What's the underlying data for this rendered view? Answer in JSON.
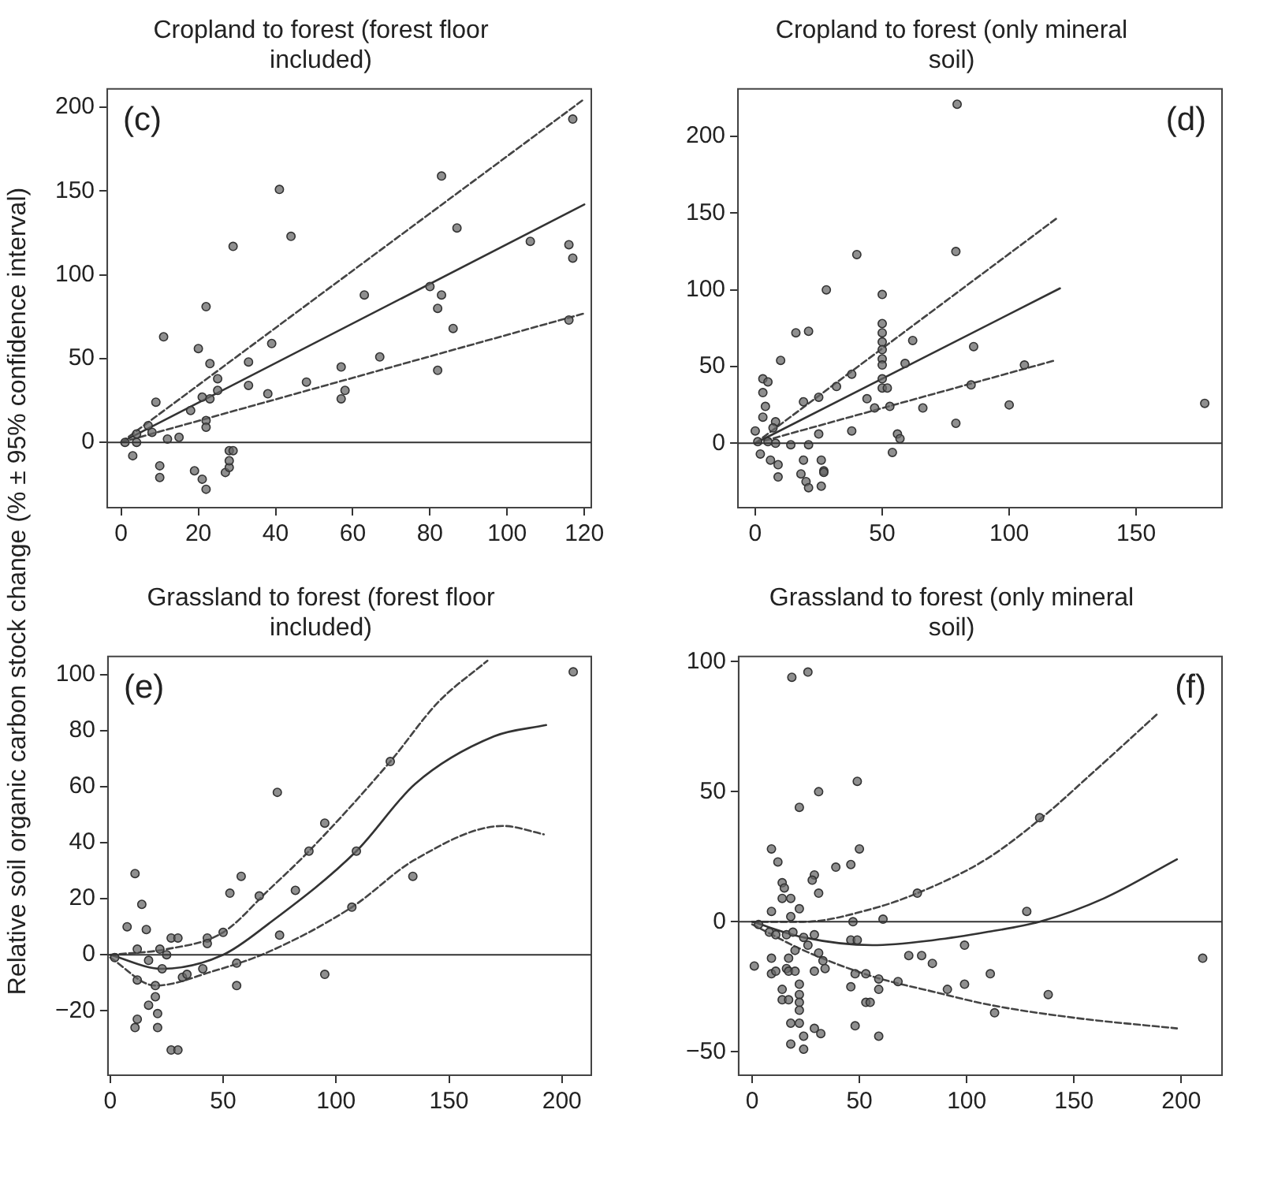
{
  "chart_data": [
    {
      "type": "scatter",
      "title": "Cropland to forest (forest floor included)",
      "ylabel": "Relative soil organic carbon stock change (% ± 95% confidence interval)",
      "annotations": [
        "(c)"
      ],
      "xlim": [
        -3.6,
        121.8
      ],
      "ylim": [
        -39,
        211
      ],
      "xticks": [
        0,
        20,
        40,
        60,
        80,
        100,
        120
      ],
      "yticks": [
        0,
        50,
        100,
        150,
        200
      ],
      "grid": false,
      "legend": false,
      "ref_lines": [
        {
          "axis": "y",
          "value": 0,
          "color": "#333333"
        }
      ],
      "series": [
        {
          "type": "scatter",
          "marker": "circle",
          "color": "#666666",
          "x": [
            1,
            3,
            4,
            4,
            7,
            8,
            9,
            10,
            10,
            11,
            12,
            15,
            18,
            19,
            20,
            21,
            21,
            22,
            22,
            22,
            22,
            23,
            23,
            25,
            25,
            27,
            28,
            28,
            28,
            29,
            29,
            33,
            33,
            38,
            39,
            41,
            44,
            48,
            57,
            57,
            58,
            63,
            67,
            80,
            82,
            82,
            83,
            83,
            86,
            87,
            106,
            116,
            116,
            117,
            117
          ],
          "values": [
            0,
            -8,
            5,
            0,
            10,
            6,
            24,
            -14,
            -21,
            63,
            2,
            3,
            19,
            -17,
            56,
            -22,
            27,
            13,
            81,
            -28,
            9,
            26,
            47,
            38,
            31,
            -18,
            -15,
            -11,
            -5,
            -5,
            117,
            48,
            34,
            29,
            59,
            151,
            123,
            36,
            45,
            26,
            31,
            88,
            51,
            93,
            80,
            43,
            88,
            159,
            68,
            128,
            120,
            118,
            73,
            110,
            193
          ]
        },
        {
          "type": "line",
          "color": "#333333",
          "line_style": "solid",
          "x": [
            0,
            120
          ],
          "values": [
            0,
            142
          ]
        },
        {
          "type": "line",
          "color": "#444444",
          "line_style": "dashed",
          "x": [
            0,
            120
          ],
          "values": [
            0,
            205
          ]
        },
        {
          "type": "line",
          "color": "#444444",
          "line_style": "dashed",
          "x": [
            0,
            120
          ],
          "values": [
            0,
            77
          ]
        }
      ]
    },
    {
      "type": "scatter",
      "title": "Cropland to forest (only mineral soil)",
      "annotations": [
        "(d)"
      ],
      "xlim": [
        -6.8,
        183.8
      ],
      "ylim": [
        -42,
        231
      ],
      "xticks": [
        0,
        50,
        100,
        150
      ],
      "yticks": [
        0,
        50,
        100,
        150,
        200
      ],
      "grid": false,
      "legend": false,
      "ref_lines": [
        {
          "axis": "y",
          "value": 0,
          "color": "#333333"
        }
      ],
      "series": [
        {
          "type": "scatter",
          "marker": "circle",
          "color": "#666666",
          "x": [
            79.5,
            79,
            40,
            28,
            50,
            50,
            50,
            50,
            50,
            50,
            50,
            62,
            59,
            86,
            16,
            21,
            10,
            3,
            5,
            3,
            4,
            3,
            0,
            1,
            8,
            7,
            19,
            25,
            32,
            38,
            44,
            47,
            50,
            50,
            52,
            53,
            66,
            85,
            100,
            106,
            177,
            79,
            56,
            57,
            54,
            38,
            25,
            14,
            21,
            2,
            6,
            9,
            9,
            18,
            19,
            20,
            21,
            26,
            27,
            27,
            26,
            8,
            5
          ],
          "values": [
            221,
            125,
            123,
            100,
            97,
            78,
            72,
            66,
            61,
            55,
            51,
            67,
            52,
            63,
            72,
            73,
            54,
            42,
            40,
            33,
            24,
            17,
            8,
            1,
            14,
            10,
            27,
            30,
            37,
            45,
            29,
            23,
            42,
            36,
            36,
            24,
            23,
            38,
            25,
            51,
            26,
            13,
            6,
            3,
            -6,
            8,
            6,
            -1,
            -1,
            -7,
            -11,
            -14,
            -22,
            -20,
            -11,
            -25,
            -29,
            -11,
            -18,
            -19,
            -28,
            0,
            1
          ]
        },
        {
          "type": "line",
          "color": "#333333",
          "line_style": "solid",
          "x": [
            0,
            120
          ],
          "values": [
            0,
            101
          ]
        },
        {
          "type": "line",
          "color": "#444444",
          "line_style": "dashed",
          "x": [
            0,
            119
          ],
          "values": [
            0,
            147
          ]
        },
        {
          "type": "line",
          "color": "#444444",
          "line_style": "dashed",
          "x": [
            0,
            118
          ],
          "values": [
            0,
            54
          ]
        }
      ]
    },
    {
      "type": "scatter",
      "title": "Grassland to forest (forest floor included)",
      "annotations": [
        "(e)"
      ],
      "xlim": [
        -1,
        213
      ],
      "ylim": [
        -43,
        106.5
      ],
      "xticks": [
        0,
        50,
        100,
        150,
        200
      ],
      "yticks": [
        -20,
        0,
        20,
        40,
        60,
        80,
        100
      ],
      "grid": false,
      "legend": false,
      "ref_lines": [
        {
          "axis": "y",
          "value": 0,
          "color": "#333333"
        }
      ],
      "series": [
        {
          "type": "scatter",
          "marker": "circle",
          "color": "#666666",
          "x": [
            205,
            124,
            74,
            95,
            88,
            109,
            134,
            107,
            82,
            75,
            58,
            53,
            66,
            95,
            56,
            56,
            11,
            14,
            7.5,
            16,
            12,
            22,
            27,
            30,
            43,
            43,
            50,
            17,
            25,
            23,
            12,
            20,
            20,
            17,
            12,
            11,
            21,
            21,
            32,
            34,
            41,
            27,
            30,
            2
          ],
          "values": [
            101,
            69,
            58,
            47,
            37,
            37,
            28,
            17,
            23,
            7,
            28,
            22,
            21,
            -7,
            -3,
            -11,
            29,
            18,
            10,
            9,
            2,
            2,
            6,
            6,
            6,
            4,
            8,
            -2,
            0,
            -5,
            -9,
            -11,
            -15,
            -18,
            -23,
            -26,
            -21,
            -26,
            -8,
            -7,
            -5,
            -34,
            -34,
            -1
          ]
        },
        {
          "type": "line",
          "color": "#333333",
          "line_style": "solid",
          "x": [
            0,
            23,
            50,
            70,
            109,
            135,
            170,
            193
          ],
          "values": [
            0,
            -5,
            0,
            11,
            37,
            61,
            78,
            82
          ]
        },
        {
          "type": "line",
          "color": "#444444",
          "line_style": "dashed",
          "x": [
            0,
            25,
            50,
            70,
            88,
            124,
            145,
            167
          ],
          "values": [
            0,
            2,
            8,
            23,
            37,
            69,
            90,
            105
          ]
        },
        {
          "type": "line",
          "color": "#444444",
          "line_style": "dashed",
          "x": [
            0,
            20,
            45,
            70,
            107,
            135,
            174,
            192
          ],
          "values": [
            -1,
            -11,
            -6,
            1,
            17,
            34,
            46,
            43
          ]
        }
      ]
    },
    {
      "type": "scatter",
      "title": "Grassland to forest (only mineral soil)",
      "annotations": [
        "(f)"
      ],
      "xlim": [
        -6.3,
        219
      ],
      "ylim": [
        -59,
        102
      ],
      "xticks": [
        0,
        50,
        100,
        150,
        200
      ],
      "yticks": [
        -50,
        0,
        50,
        100
      ],
      "grid": false,
      "legend": false,
      "ref_lines": [
        {
          "axis": "y",
          "value": 0,
          "color": "#333333"
        }
      ],
      "series": [
        {
          "type": "scatter",
          "marker": "circle",
          "color": "#666666",
          "x": [
            18.5,
            26,
            22,
            31,
            49,
            134,
            9,
            12,
            50,
            39,
            46,
            29,
            28,
            31,
            14,
            15,
            14,
            18,
            9,
            22,
            18,
            77,
            128,
            47,
            61,
            3,
            8,
            11,
            16,
            19,
            24,
            29,
            46,
            49,
            26,
            20,
            31,
            33,
            34,
            17,
            9,
            1,
            16,
            17,
            20,
            9,
            11,
            29,
            73,
            79,
            84,
            99,
            48,
            53,
            59,
            68,
            99,
            111,
            91,
            46,
            53,
            55,
            59,
            113,
            138,
            210,
            14,
            14,
            22,
            22,
            22,
            22,
            17,
            18,
            22,
            29,
            32,
            24,
            18,
            24,
            48,
            59
          ],
          "values": [
            94,
            96,
            44,
            50,
            54,
            40,
            28,
            23,
            28,
            21,
            22,
            18,
            16,
            11,
            15,
            13,
            9,
            9,
            4,
            5,
            2,
            11,
            4,
            0,
            1,
            -1,
            -4,
            -5,
            -5,
            -4,
            -6,
            -5,
            -7,
            -7,
            -9,
            -11,
            -12,
            -15,
            -18,
            -14,
            -14,
            -17,
            -18,
            -19,
            -19,
            -20,
            -19,
            -19,
            -13,
            -13,
            -16,
            -9,
            -20,
            -20,
            -22,
            -23,
            -24,
            -20,
            -26,
            -25,
            -31,
            -31,
            -26,
            -35,
            -28,
            -14,
            -26,
            -30,
            -24,
            -28,
            -31,
            -34,
            -30,
            -39,
            -39,
            -41,
            -43,
            -44,
            -47,
            -49,
            -40,
            -44
          ]
        },
        {
          "type": "line",
          "color": "#333333",
          "line_style": "solid",
          "x": [
            0,
            24,
            56,
            85,
            109,
            134,
            164,
            198
          ],
          "values": [
            0,
            -6,
            -9,
            -7,
            -4,
            0,
            9,
            24
          ]
        },
        {
          "type": "line",
          "color": "#444444",
          "line_style": "dashed",
          "x": [
            0,
            24,
            56,
            77,
            109,
            135,
            161,
            189
          ],
          "values": [
            0,
            0,
            5,
            11,
            24,
            40,
            59,
            80
          ]
        },
        {
          "type": "line",
          "color": "#444444",
          "line_style": "dashed",
          "x": [
            0,
            24,
            56,
            85,
            111,
            151,
            198
          ],
          "values": [
            -1,
            -11,
            -21,
            -27,
            -32,
            -37,
            -41
          ]
        }
      ]
    }
  ]
}
